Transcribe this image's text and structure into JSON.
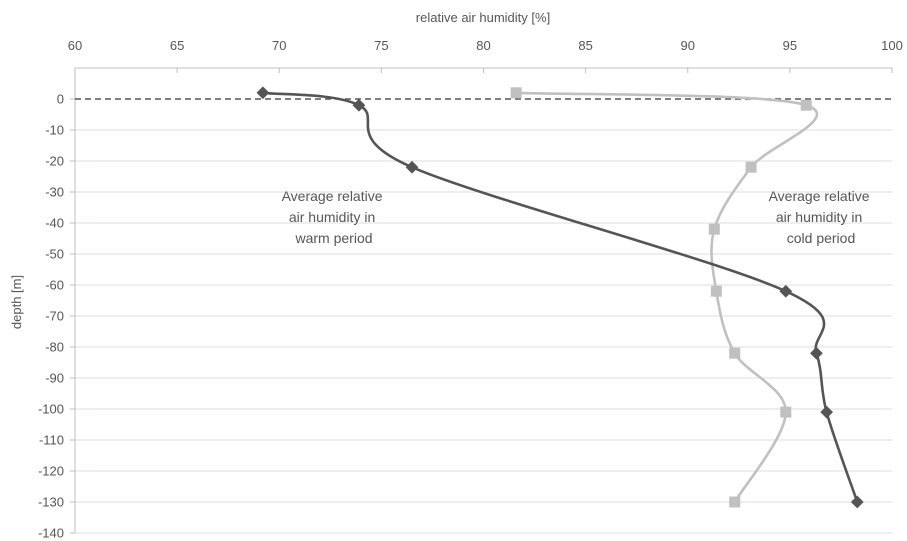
{
  "chart_data": {
    "type": "line",
    "xlabel": "relative air humidity [%]",
    "ylabel": "depth [m]",
    "xlim": [
      60,
      100
    ],
    "ylim": [
      -140,
      0
    ],
    "x_ticks": [
      "60",
      "65",
      "70",
      "75",
      "80",
      "85",
      "90",
      "95",
      "100"
    ],
    "y_ticks": [
      "0",
      "-10",
      "-20",
      "-30",
      "-40",
      "-50",
      "-60",
      "-70",
      "-80",
      "-90",
      "-100",
      "-110",
      "-120",
      "-130",
      "-140"
    ],
    "grid": "horizontal",
    "reference_line": {
      "y": 0,
      "style": "dashed"
    },
    "annotations": [
      {
        "lines": [
          "Average relative",
          "air humidity in",
          "warm period"
        ]
      },
      {
        "lines": [
          "Average relative",
          "air humidity in",
          "cold period"
        ]
      }
    ],
    "series": [
      {
        "color": "#555555",
        "marker": "diamond",
        "points": [
          [
            69.2,
            2
          ],
          [
            73.9,
            -2
          ],
          [
            76.5,
            -22
          ],
          [
            94.8,
            -62
          ],
          [
            96.3,
            -82
          ],
          [
            96.8,
            -101
          ],
          [
            98.3,
            -130
          ]
        ]
      },
      {
        "color": "#c0c0c0",
        "marker": "square",
        "points": [
          [
            81.6,
            2
          ],
          [
            95.8,
            -2
          ],
          [
            93.1,
            -22
          ],
          [
            91.3,
            -42
          ],
          [
            91.4,
            -62
          ],
          [
            92.3,
            -82
          ],
          [
            94.8,
            -101
          ],
          [
            92.3,
            -130
          ]
        ]
      }
    ]
  }
}
